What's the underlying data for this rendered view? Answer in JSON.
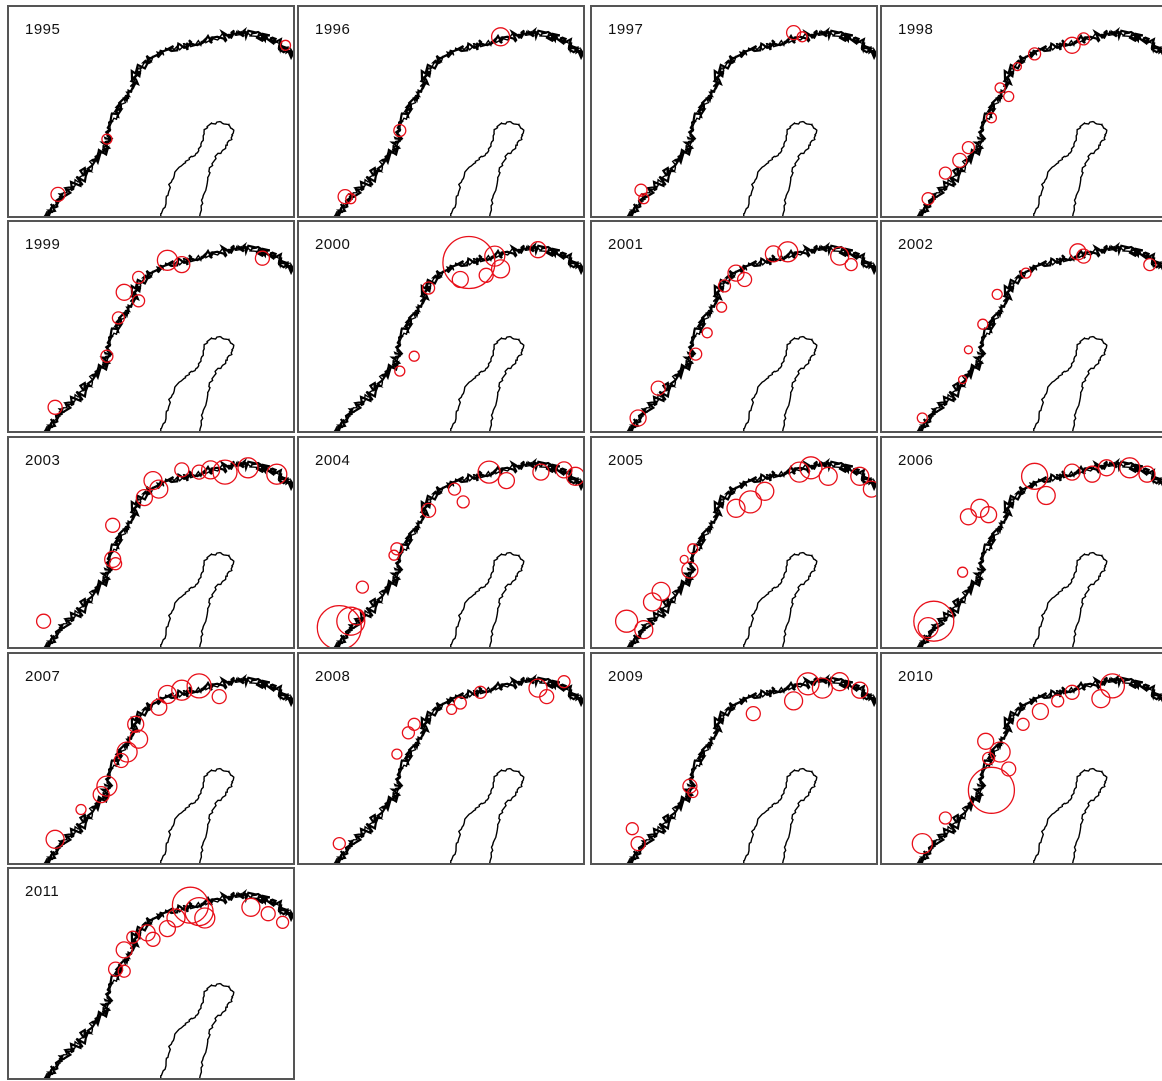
{
  "colors": {
    "coast": "#000000",
    "marker": "#e8101a",
    "frame": "#555555",
    "background": "#ffffff"
  },
  "panels": [
    {
      "year": "1995",
      "circles": [
        [
          0.96,
          0.18,
          5
        ],
        [
          0.34,
          0.62,
          5
        ],
        [
          0.17,
          0.88,
          7
        ]
      ]
    },
    {
      "year": "1996",
      "circles": [
        [
          0.7,
          0.14,
          9
        ],
        [
          0.35,
          0.58,
          6
        ],
        [
          0.16,
          0.89,
          7
        ],
        [
          0.18,
          0.9,
          5
        ]
      ]
    },
    {
      "year": "1997",
      "circles": [
        [
          0.7,
          0.12,
          7
        ],
        [
          0.73,
          0.14,
          5
        ],
        [
          0.17,
          0.86,
          6
        ],
        [
          0.18,
          0.9,
          5
        ]
      ]
    },
    {
      "year": "1998",
      "circles": [
        [
          0.66,
          0.18,
          8
        ],
        [
          0.7,
          0.15,
          6
        ],
        [
          0.53,
          0.22,
          6
        ],
        [
          0.47,
          0.28,
          4
        ],
        [
          0.41,
          0.38,
          5
        ],
        [
          0.44,
          0.42,
          5
        ],
        [
          0.38,
          0.52,
          5
        ],
        [
          0.3,
          0.66,
          6
        ],
        [
          0.27,
          0.72,
          7
        ],
        [
          0.22,
          0.78,
          6
        ],
        [
          0.16,
          0.9,
          6
        ]
      ]
    },
    {
      "year": "1999",
      "circles": [
        [
          0.55,
          0.18,
          10
        ],
        [
          0.6,
          0.2,
          8
        ],
        [
          0.88,
          0.17,
          7
        ],
        [
          0.45,
          0.26,
          6
        ],
        [
          0.4,
          0.33,
          8
        ],
        [
          0.45,
          0.37,
          6
        ],
        [
          0.38,
          0.45,
          6
        ],
        [
          0.34,
          0.63,
          6
        ],
        [
          0.16,
          0.87,
          7
        ]
      ]
    },
    {
      "year": "2000",
      "circles": [
        [
          0.59,
          0.19,
          26
        ],
        [
          0.68,
          0.16,
          10
        ],
        [
          0.7,
          0.22,
          9
        ],
        [
          0.65,
          0.25,
          7
        ],
        [
          0.83,
          0.13,
          8
        ],
        [
          0.56,
          0.27,
          8
        ],
        [
          0.45,
          0.31,
          6
        ],
        [
          0.4,
          0.63,
          5
        ],
        [
          0.35,
          0.7,
          5
        ]
      ]
    },
    {
      "year": "2001",
      "circles": [
        [
          0.5,
          0.24,
          8
        ],
        [
          0.53,
          0.27,
          7
        ],
        [
          0.63,
          0.15,
          8
        ],
        [
          0.68,
          0.14,
          10
        ],
        [
          0.86,
          0.16,
          9
        ],
        [
          0.9,
          0.2,
          6
        ],
        [
          0.46,
          0.3,
          6
        ],
        [
          0.45,
          0.4,
          5
        ],
        [
          0.4,
          0.52,
          5
        ],
        [
          0.36,
          0.62,
          6
        ],
        [
          0.23,
          0.78,
          7
        ],
        [
          0.16,
          0.92,
          8
        ]
      ]
    },
    {
      "year": "2002",
      "circles": [
        [
          0.68,
          0.14,
          8
        ],
        [
          0.7,
          0.16,
          7
        ],
        [
          0.93,
          0.2,
          6
        ],
        [
          0.5,
          0.24,
          5
        ],
        [
          0.4,
          0.34,
          5
        ],
        [
          0.35,
          0.48,
          5
        ],
        [
          0.3,
          0.6,
          4
        ],
        [
          0.28,
          0.74,
          4
        ],
        [
          0.14,
          0.92,
          5
        ]
      ]
    },
    {
      "year": "2003",
      "circles": [
        [
          0.5,
          0.2,
          9
        ],
        [
          0.52,
          0.24,
          9
        ],
        [
          0.47,
          0.28,
          8
        ],
        [
          0.6,
          0.15,
          7
        ],
        [
          0.66,
          0.16,
          7
        ],
        [
          0.7,
          0.15,
          9
        ],
        [
          0.75,
          0.16,
          12
        ],
        [
          0.83,
          0.14,
          10
        ],
        [
          0.93,
          0.17,
          10
        ],
        [
          0.36,
          0.41,
          7
        ],
        [
          0.36,
          0.57,
          8
        ],
        [
          0.37,
          0.59,
          6
        ],
        [
          0.12,
          0.86,
          7
        ]
      ]
    },
    {
      "year": "2004",
      "circles": [
        [
          0.66,
          0.16,
          11
        ],
        [
          0.72,
          0.2,
          8
        ],
        [
          0.54,
          0.24,
          6
        ],
        [
          0.57,
          0.3,
          6
        ],
        [
          0.45,
          0.34,
          7
        ],
        [
          0.84,
          0.16,
          8
        ],
        [
          0.92,
          0.15,
          8
        ],
        [
          0.96,
          0.18,
          9
        ],
        [
          0.34,
          0.52,
          6
        ],
        [
          0.33,
          0.55,
          5
        ],
        [
          0.22,
          0.7,
          6
        ],
        [
          0.14,
          0.89,
          22
        ],
        [
          0.18,
          0.86,
          14
        ],
        [
          0.2,
          0.84,
          8
        ]
      ]
    },
    {
      "year": "2005",
      "circles": [
        [
          0.72,
          0.16,
          10
        ],
        [
          0.76,
          0.14,
          11
        ],
        [
          0.82,
          0.18,
          9
        ],
        [
          0.6,
          0.25,
          9
        ],
        [
          0.55,
          0.3,
          11
        ],
        [
          0.5,
          0.33,
          9
        ],
        [
          0.35,
          0.52,
          5
        ],
        [
          0.32,
          0.57,
          4
        ],
        [
          0.34,
          0.62,
          8
        ],
        [
          0.24,
          0.72,
          9
        ],
        [
          0.21,
          0.77,
          9
        ],
        [
          0.12,
          0.86,
          11
        ],
        [
          0.18,
          0.9,
          9
        ],
        [
          0.93,
          0.18,
          9
        ],
        [
          0.97,
          0.24,
          8
        ]
      ]
    },
    {
      "year": "2006",
      "circles": [
        [
          0.53,
          0.18,
          13
        ],
        [
          0.57,
          0.27,
          9
        ],
        [
          0.34,
          0.33,
          9
        ],
        [
          0.3,
          0.37,
          8
        ],
        [
          0.37,
          0.36,
          8
        ],
        [
          0.66,
          0.16,
          8
        ],
        [
          0.73,
          0.17,
          8
        ],
        [
          0.78,
          0.14,
          8
        ],
        [
          0.86,
          0.14,
          10
        ],
        [
          0.92,
          0.17,
          8
        ],
        [
          0.28,
          0.63,
          5
        ],
        [
          0.18,
          0.86,
          20
        ],
        [
          0.16,
          0.89,
          10
        ]
      ]
    },
    {
      "year": "2007",
      "circles": [
        [
          0.55,
          0.19,
          9
        ],
        [
          0.52,
          0.25,
          8
        ],
        [
          0.6,
          0.17,
          10
        ],
        [
          0.66,
          0.15,
          12
        ],
        [
          0.73,
          0.2,
          7
        ],
        [
          0.44,
          0.33,
          8
        ],
        [
          0.45,
          0.4,
          9
        ],
        [
          0.41,
          0.46,
          10
        ],
        [
          0.39,
          0.5,
          7
        ],
        [
          0.34,
          0.62,
          10
        ],
        [
          0.32,
          0.66,
          8
        ],
        [
          0.25,
          0.73,
          5
        ],
        [
          0.16,
          0.87,
          9
        ]
      ]
    },
    {
      "year": "2008",
      "circles": [
        [
          0.83,
          0.16,
          9
        ],
        [
          0.86,
          0.2,
          7
        ],
        [
          0.92,
          0.13,
          6
        ],
        [
          0.63,
          0.18,
          6
        ],
        [
          0.56,
          0.23,
          6
        ],
        [
          0.53,
          0.26,
          5
        ],
        [
          0.4,
          0.33,
          6
        ],
        [
          0.38,
          0.37,
          6
        ],
        [
          0.34,
          0.47,
          5
        ],
        [
          0.14,
          0.89,
          6
        ]
      ]
    },
    {
      "year": "2009",
      "circles": [
        [
          0.75,
          0.14,
          11
        ],
        [
          0.8,
          0.16,
          10
        ],
        [
          0.86,
          0.13,
          9
        ],
        [
          0.93,
          0.17,
          8
        ],
        [
          0.7,
          0.22,
          9
        ],
        [
          0.56,
          0.28,
          7
        ],
        [
          0.34,
          0.62,
          7
        ],
        [
          0.35,
          0.65,
          5
        ],
        [
          0.14,
          0.82,
          6
        ],
        [
          0.16,
          0.89,
          7
        ]
      ]
    },
    {
      "year": "2010",
      "circles": [
        [
          0.8,
          0.15,
          12
        ],
        [
          0.76,
          0.21,
          9
        ],
        [
          0.66,
          0.18,
          7
        ],
        [
          0.61,
          0.22,
          6
        ],
        [
          0.55,
          0.27,
          8
        ],
        [
          0.49,
          0.33,
          6
        ],
        [
          0.36,
          0.41,
          8
        ],
        [
          0.41,
          0.46,
          10
        ],
        [
          0.37,
          0.49,
          6
        ],
        [
          0.44,
          0.54,
          7
        ],
        [
          0.38,
          0.64,
          23
        ],
        [
          0.22,
          0.77,
          6
        ],
        [
          0.14,
          0.89,
          10
        ]
      ]
    },
    {
      "year": "2011",
      "circles": [
        [
          0.63,
          0.17,
          18
        ],
        [
          0.66,
          0.2,
          14
        ],
        [
          0.68,
          0.23,
          10
        ],
        [
          0.58,
          0.23,
          9
        ],
        [
          0.55,
          0.28,
          8
        ],
        [
          0.48,
          0.3,
          8
        ],
        [
          0.5,
          0.33,
          7
        ],
        [
          0.43,
          0.32,
          6
        ],
        [
          0.4,
          0.38,
          8
        ],
        [
          0.37,
          0.47,
          7
        ],
        [
          0.4,
          0.48,
          6
        ],
        [
          0.84,
          0.18,
          9
        ],
        [
          0.9,
          0.21,
          7
        ],
        [
          0.95,
          0.25,
          6
        ]
      ]
    }
  ]
}
